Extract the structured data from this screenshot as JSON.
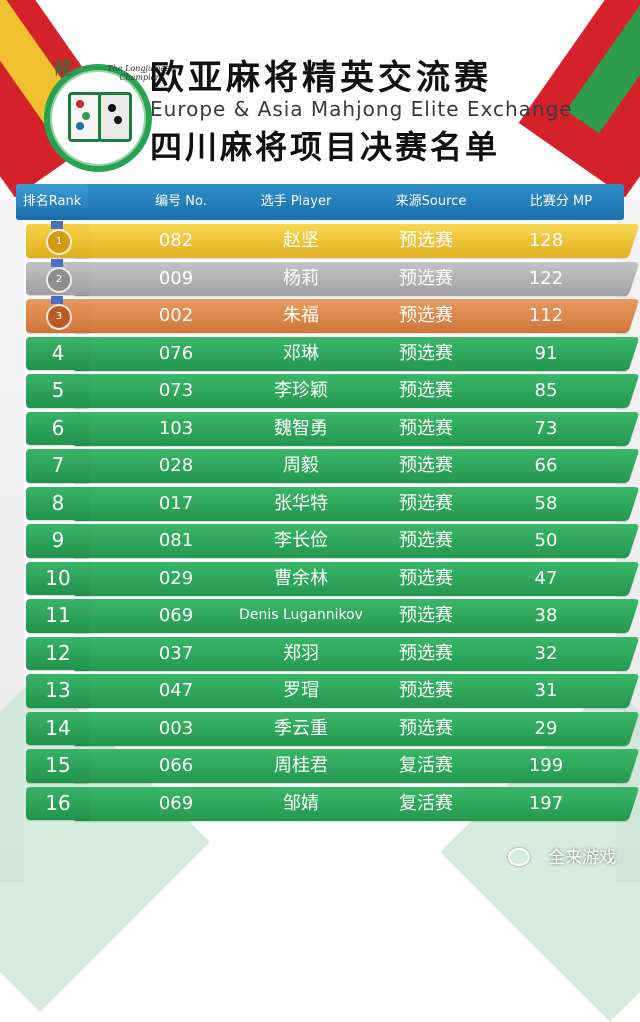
{
  "header": {
    "title_cn": "欧亚麻将精英交流赛",
    "title_en": "Europe & Asia Mahjong Elite Exchange",
    "subtitle_cn": "四川麻将项目决赛名单",
    "logo_caption": "The Longjumest Champion"
  },
  "table": {
    "headers": {
      "rank": "排名Rank",
      "no": "编号 No.",
      "player": "选手 Player",
      "source": "来源Source",
      "mp": "比赛分 MP"
    },
    "rows": [
      {
        "rank": "1",
        "no": "082",
        "player": "赵坚",
        "source": "预选赛",
        "mp": "128",
        "style": "gold"
      },
      {
        "rank": "2",
        "no": "009",
        "player": "杨莉",
        "source": "预选赛",
        "mp": "122",
        "style": "silver"
      },
      {
        "rank": "3",
        "no": "002",
        "player": "朱福",
        "source": "预选赛",
        "mp": "112",
        "style": "bronze"
      },
      {
        "rank": "4",
        "no": "076",
        "player": "邓琳",
        "source": "预选赛",
        "mp": "91",
        "style": "green"
      },
      {
        "rank": "5",
        "no": "073",
        "player": "李珍颖",
        "source": "预选赛",
        "mp": "85",
        "style": "green"
      },
      {
        "rank": "6",
        "no": "103",
        "player": "魏智勇",
        "source": "预选赛",
        "mp": "73",
        "style": "green"
      },
      {
        "rank": "7",
        "no": "028",
        "player": "周毅",
        "source": "预选赛",
        "mp": "66",
        "style": "green"
      },
      {
        "rank": "8",
        "no": "017",
        "player": "张华特",
        "source": "预选赛",
        "mp": "58",
        "style": "green"
      },
      {
        "rank": "9",
        "no": "081",
        "player": "李长俭",
        "source": "预选赛",
        "mp": "50",
        "style": "green"
      },
      {
        "rank": "10",
        "no": "029",
        "player": "曹余林",
        "source": "预选赛",
        "mp": "47",
        "style": "green"
      },
      {
        "rank": "11",
        "no": "069",
        "player": "Denis Lugannikov",
        "source": "预选赛",
        "mp": "38",
        "style": "green"
      },
      {
        "rank": "12",
        "no": "037",
        "player": "郑羽",
        "source": "预选赛",
        "mp": "32",
        "style": "green"
      },
      {
        "rank": "13",
        "no": "047",
        "player": "罗瑁",
        "source": "预选赛",
        "mp": "31",
        "style": "green"
      },
      {
        "rank": "14",
        "no": "003",
        "player": "季云重",
        "source": "预选赛",
        "mp": "29",
        "style": "green"
      },
      {
        "rank": "15",
        "no": "066",
        "player": "周桂君",
        "source": "复活赛",
        "mp": "199",
        "style": "green"
      },
      {
        "rank": "16",
        "no": "069",
        "player": "邹婧",
        "source": "复活赛",
        "mp": "197",
        "style": "green"
      }
    ]
  },
  "watermark": "全来游戏",
  "colors": {
    "green": "#2ea85a",
    "gold": "#ecbf2d",
    "silver": "#b0b0b0",
    "bronze": "#dc8447",
    "header_blue": "#2580c0",
    "accent_red": "#d5222a"
  },
  "icons": {
    "medal_gold": "medal-gold-icon",
    "medal_silver": "medal-silver-icon",
    "medal_bronze": "medal-bronze-icon",
    "logo": "mahjong-tiles-dragon-logo"
  }
}
